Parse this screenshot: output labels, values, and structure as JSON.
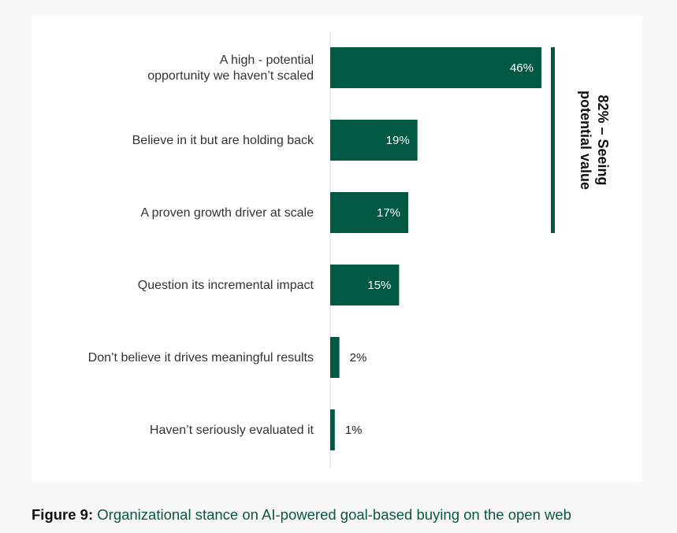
{
  "chart_data": {
    "type": "bar",
    "orientation": "horizontal",
    "categories": [
      [
        "A high - potential",
        "opportunity we haven’t scaled"
      ],
      [
        "Believe in it but are holding back"
      ],
      [
        "A proven growth driver at scale"
      ],
      [
        "Question its incremental impact"
      ],
      [
        "Don’t believe it drives meaningful results"
      ],
      [
        "Haven’t seriously evaluated it"
      ]
    ],
    "values": [
      46,
      19,
      17,
      15,
      2,
      1
    ],
    "value_labels": [
      "46%",
      "19%",
      "17%",
      "15%",
      "2%",
      "1%"
    ],
    "bar_color": "#005943",
    "xlim": [
      0,
      46
    ],
    "grid": false,
    "bracket": {
      "lines": [
        "82% – Seeing",
        "potential value"
      ],
      "covers_categories": [
        0,
        1,
        2
      ],
      "color": "#005943"
    }
  },
  "caption": {
    "figure_number": "Figure 9:",
    "text": "Organizational stance on AI-powered goal-based buying on the open web"
  }
}
